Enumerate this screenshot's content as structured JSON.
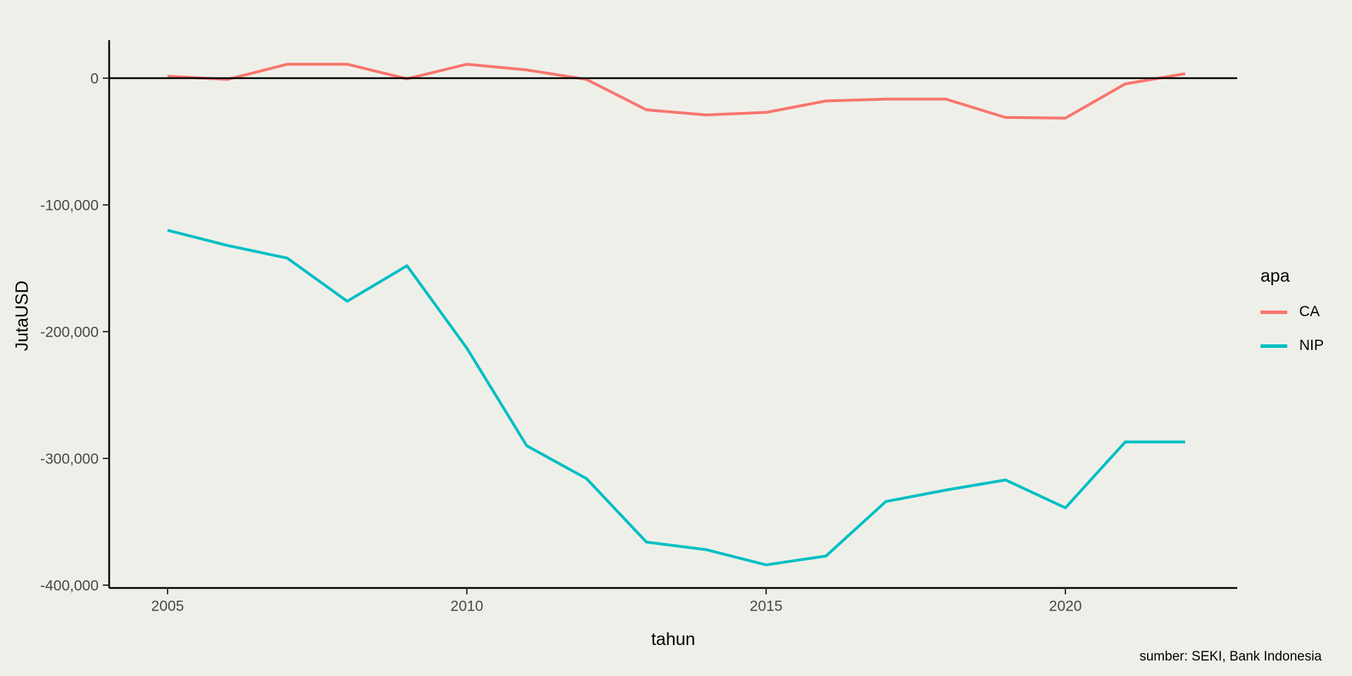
{
  "chart_data": {
    "type": "line",
    "title": "",
    "xlabel": "tahun",
    "ylabel": "JutaUSD",
    "caption": "sumber: SEKI, Bank Indonesia",
    "legend_title": "apa",
    "legend_position": "right",
    "grid": false,
    "zero_line": true,
    "x": [
      2005,
      2006,
      2007,
      2008,
      2009,
      2010,
      2011,
      2012,
      2013,
      2014,
      2015,
      2016,
      2017,
      2018,
      2019,
      2020,
      2021,
      2022
    ],
    "series": [
      {
        "name": "CA",
        "color": "#F8766D",
        "values": [
          1500,
          -1000,
          11000,
          11000,
          -500,
          11000,
          6500,
          -1000,
          -25000,
          -29000,
          -27000,
          -18000,
          -16500,
          -16500,
          -31000,
          -31500,
          -4500,
          3500
        ]
      },
      {
        "name": "NIP",
        "color": "#00BFC4",
        "values": [
          -120000,
          -132000,
          -142000,
          -176000,
          -148000,
          -213000,
          -290000,
          -316000,
          -366000,
          -372000,
          -384000,
          -377000,
          -334000,
          -325000,
          -317000,
          -339000,
          -287000,
          -287000
        ]
      }
    ],
    "x_ticks": {
      "values": [
        2005,
        2010,
        2015,
        2020
      ],
      "labels": [
        "2005",
        "2010",
        "2015",
        "2020"
      ]
    },
    "y_ticks": {
      "values": [
        0,
        -100000,
        -200000,
        -300000,
        -400000
      ],
      "labels": [
        "0",
        "-100,000",
        "-200,000",
        "-300,000",
        "-400,000"
      ]
    },
    "xlim": [
      2004,
      2023
    ],
    "ylim": [
      -400000,
      15000
    ]
  },
  "colors": {
    "background": "#EFEFE9",
    "axis_line": "#000000",
    "tick_mark": "#333333",
    "axis_text": "#474747",
    "text": "#000000"
  }
}
